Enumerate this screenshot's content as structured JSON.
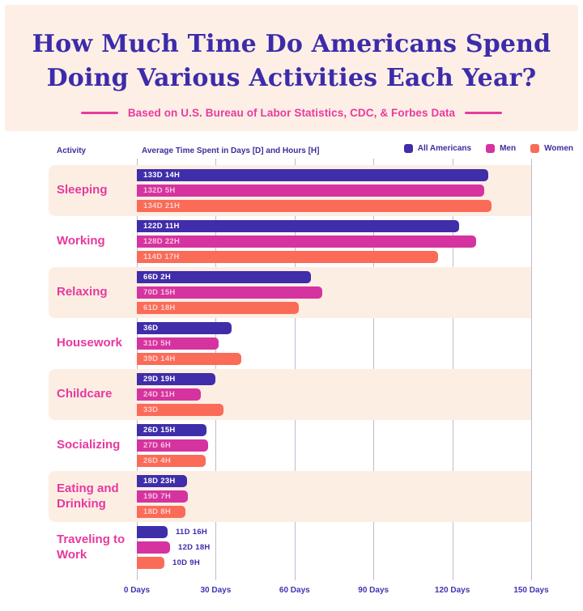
{
  "header": {
    "title_line1": "How Much Time Do Americans Spend",
    "title_line2": "Doing Various Activities Each Year?",
    "subtitle": "Based on U.S. Bureau of Labor Statistics, CDC, & Forbes Data"
  },
  "columns": {
    "activity_label": "Activity",
    "value_axis_label": "Average Time Spent in Days [D] and Hours [H]"
  },
  "legend": [
    {
      "label": "All Americans",
      "color": "#3f2daa"
    },
    {
      "label": "Men",
      "color": "#d433a0"
    },
    {
      "label": "Women",
      "color": "#fa6b58"
    }
  ],
  "colors": {
    "page_background": "#ffffff",
    "header_background": "#fdefe6",
    "row_band_background": "#fdeee3",
    "title": "#3c2caa",
    "accent_pink": "#ea3a9e",
    "gridline": "#aaa4bf",
    "axis_label": "#4035ad",
    "bar_label_on_all_americans": "#ffffff",
    "bar_label_on_men": "#f9c2de",
    "bar_label_on_women": "#ffd0ce"
  },
  "chart_data": {
    "type": "bar",
    "orientation": "horizontal",
    "title": "How Much Time Do Americans Spend Doing Various Activities Each Year?",
    "subtitle": "Based on U.S. Bureau of Labor Statistics, CDC, & Forbes Data",
    "xlabel": "Average Time Spent in Days [D] and Hours [H]",
    "ylabel": "Activity",
    "xlim_days": [
      0,
      150
    ],
    "grid": true,
    "legend_position": "top-right",
    "x_ticks": [
      "0 Days",
      "30 Days",
      "60 Days",
      "90 Days",
      "120 Days",
      "150 Days"
    ],
    "x_tick_values": [
      0,
      30,
      60,
      90,
      120,
      150
    ],
    "categories": [
      "Sleeping",
      "Working",
      "Relaxing",
      "Housework",
      "Childcare",
      "Socializing",
      "Eating and Drinking",
      "Traveling to Work"
    ],
    "labels_outside_category_index": 7,
    "series": [
      {
        "name": "All Americans",
        "color": "#3f2daa",
        "label_color": "#ffffff",
        "points": [
          {
            "label": "133D 14H",
            "days": 133.58
          },
          {
            "label": "122D 11H",
            "days": 122.46
          },
          {
            "label": "66D 2H",
            "days": 66.08
          },
          {
            "label": "36D",
            "days": 36.0
          },
          {
            "label": "29D 19H",
            "days": 29.79
          },
          {
            "label": "26D 15H",
            "days": 26.63
          },
          {
            "label": "18D 23H",
            "days": 18.96
          },
          {
            "label": "11D 16H",
            "days": 11.67
          }
        ]
      },
      {
        "name": "Men",
        "color": "#d433a0",
        "label_color": "#f9c2de",
        "points": [
          {
            "label": "132D 5H",
            "days": 132.21
          },
          {
            "label": "128D 22H",
            "days": 128.92
          },
          {
            "label": "70D 15H",
            "days": 70.63
          },
          {
            "label": "31D 5H",
            "days": 31.21
          },
          {
            "label": "24D 11H",
            "days": 24.46
          },
          {
            "label": "27D 6H",
            "days": 27.25
          },
          {
            "label": "19D 7H",
            "days": 19.29
          },
          {
            "label": "12D 18H",
            "days": 12.75
          }
        ]
      },
      {
        "name": "Women",
        "color": "#fa6b58",
        "label_color": "#ffd0ce",
        "points": [
          {
            "label": "134D 21H",
            "days": 134.88
          },
          {
            "label": "114D 17H",
            "days": 114.71
          },
          {
            "label": "61D 18H",
            "days": 61.75
          },
          {
            "label": "39D 14H",
            "days": 39.58
          },
          {
            "label": "33D",
            "days": 33.0
          },
          {
            "label": "26D 4H",
            "days": 26.17
          },
          {
            "label": "18D 8H",
            "days": 18.33
          },
          {
            "label": "10D 9H",
            "days": 10.38
          }
        ]
      }
    ]
  }
}
